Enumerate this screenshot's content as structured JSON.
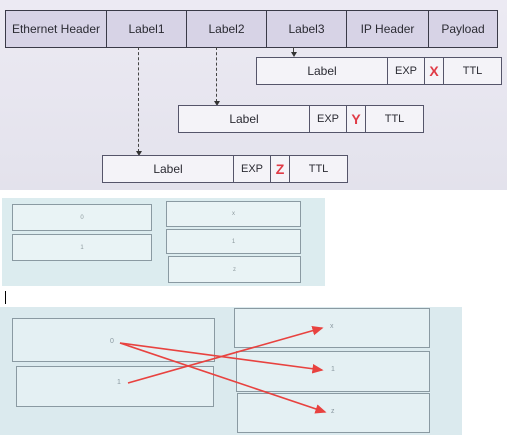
{
  "header": {
    "ethernet_header": "Ethernet Header",
    "label1": "Label1",
    "label2": "Label2",
    "label3": "Label3",
    "ip_header": "IP Header",
    "payload": "Payload"
  },
  "label_fields": [
    {
      "label": "Label",
      "exp": "EXP",
      "var": "X",
      "ttl": "TTL"
    },
    {
      "label": "Label",
      "exp": "EXP",
      "var": "Y",
      "ttl": "TTL"
    },
    {
      "label": "Label",
      "exp": "EXP",
      "var": "Z",
      "ttl": "TTL"
    }
  ],
  "mid_panel": {
    "left_values": [
      "0",
      "1"
    ],
    "right_values": [
      "x",
      "1",
      "z"
    ]
  },
  "bottom_panel": {
    "left_values": [
      "0",
      "1"
    ],
    "right_values": [
      "x",
      "1",
      "z"
    ]
  },
  "colors": {
    "var_accent": "#e03a46",
    "arrow": "#e8423f"
  }
}
